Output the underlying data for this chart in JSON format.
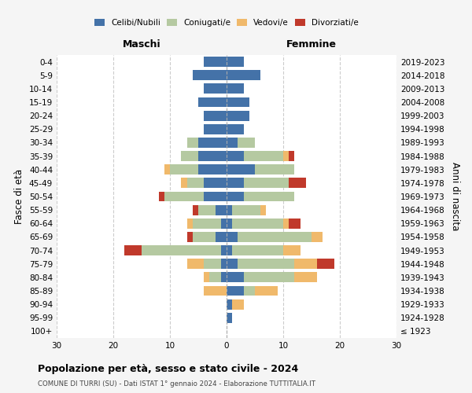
{
  "age_groups": [
    "100+",
    "95-99",
    "90-94",
    "85-89",
    "80-84",
    "75-79",
    "70-74",
    "65-69",
    "60-64",
    "55-59",
    "50-54",
    "45-49",
    "40-44",
    "35-39",
    "30-34",
    "25-29",
    "20-24",
    "15-19",
    "10-14",
    "5-9",
    "0-4"
  ],
  "birth_years": [
    "≤ 1923",
    "1924-1928",
    "1929-1933",
    "1934-1938",
    "1939-1943",
    "1944-1948",
    "1949-1953",
    "1954-1958",
    "1959-1963",
    "1964-1968",
    "1969-1973",
    "1974-1978",
    "1979-1983",
    "1984-1988",
    "1989-1993",
    "1994-1998",
    "1999-2003",
    "2004-2008",
    "2009-2013",
    "2014-2018",
    "2019-2023"
  ],
  "colors": {
    "celibi": "#4472a8",
    "coniugati": "#b5c9a1",
    "vedovi": "#f0b96b",
    "divorziati": "#c0392b"
  },
  "maschi": {
    "celibi": [
      0,
      0,
      0,
      0,
      1,
      1,
      1,
      2,
      1,
      2,
      4,
      4,
      5,
      5,
      5,
      4,
      4,
      5,
      4,
      6,
      4
    ],
    "coniugati": [
      0,
      0,
      0,
      0,
      2,
      3,
      14,
      4,
      5,
      3,
      7,
      3,
      5,
      3,
      2,
      0,
      0,
      0,
      0,
      0,
      0
    ],
    "vedovi": [
      0,
      0,
      0,
      4,
      1,
      3,
      0,
      0,
      1,
      0,
      0,
      1,
      1,
      0,
      0,
      0,
      0,
      0,
      0,
      0,
      0
    ],
    "divorziati": [
      0,
      0,
      0,
      0,
      0,
      0,
      3,
      1,
      0,
      1,
      1,
      0,
      0,
      0,
      0,
      0,
      0,
      0,
      0,
      0,
      0
    ]
  },
  "femmine": {
    "celibi": [
      0,
      1,
      1,
      3,
      3,
      2,
      1,
      2,
      1,
      1,
      3,
      3,
      5,
      3,
      2,
      3,
      4,
      4,
      3,
      6,
      3
    ],
    "coniugati": [
      0,
      0,
      0,
      2,
      9,
      10,
      9,
      13,
      9,
      5,
      9,
      8,
      7,
      7,
      3,
      0,
      0,
      0,
      0,
      0,
      0
    ],
    "vedovi": [
      0,
      0,
      2,
      4,
      4,
      4,
      3,
      2,
      1,
      1,
      0,
      0,
      0,
      1,
      0,
      0,
      0,
      0,
      0,
      0,
      0
    ],
    "divorziati": [
      0,
      0,
      0,
      0,
      0,
      3,
      0,
      0,
      2,
      0,
      0,
      3,
      0,
      1,
      0,
      0,
      0,
      0,
      0,
      0,
      0
    ]
  },
  "xlim": 30,
  "title": "Popolazione per età, sesso e stato civile - 2024",
  "subtitle": "COMUNE DI TURRI (SU) - Dati ISTAT 1° gennaio 2024 - Elaborazione TUTTITALIA.IT",
  "xlabel_left": "Maschi",
  "xlabel_right": "Femmine",
  "ylabel_left": "Fasce di età",
  "ylabel_right": "Anni di nascita",
  "legend_labels": [
    "Celibi/Nubili",
    "Coniugati/e",
    "Vedovi/e",
    "Divorziati/e"
  ],
  "background_color": "#f5f5f5",
  "plot_bg": "#ffffff"
}
